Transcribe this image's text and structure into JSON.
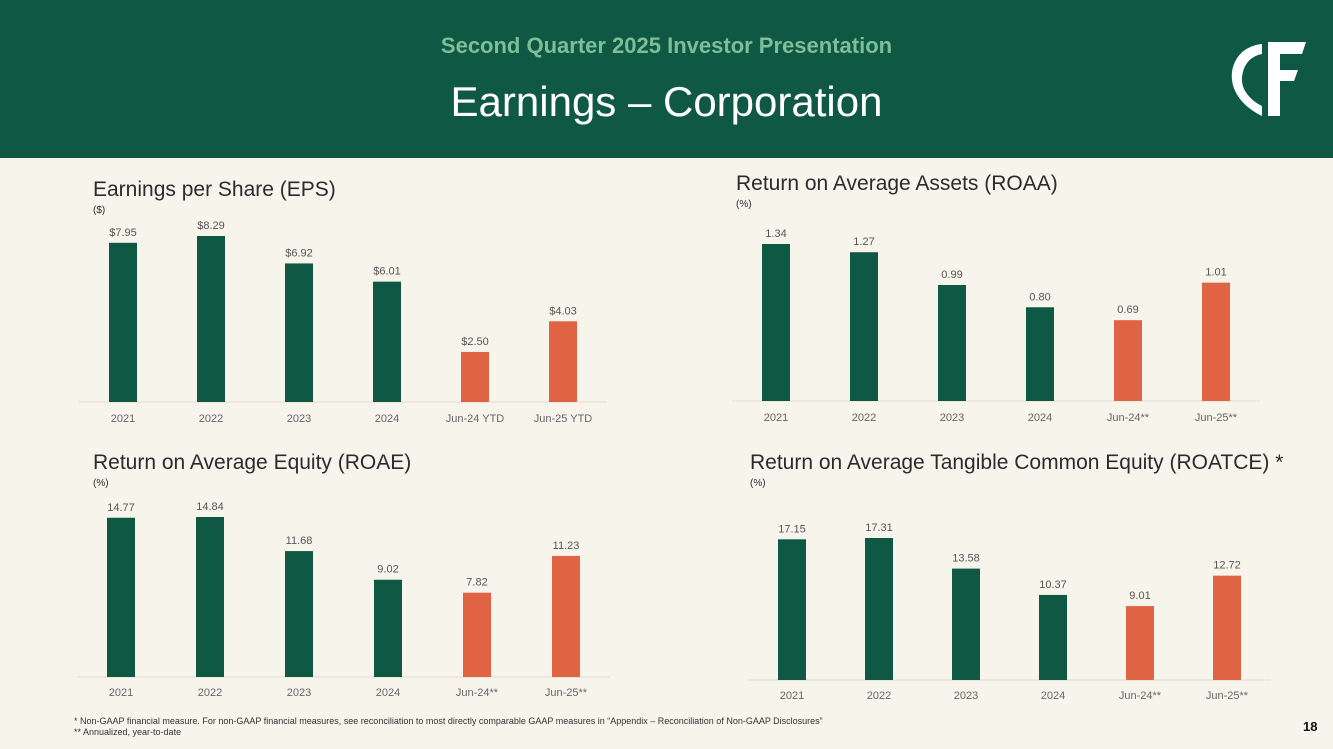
{
  "header": {
    "subtitle": "Second Quarter 2025 Investor Presentation",
    "title": "Earnings – Corporation",
    "bg_color": "#0f5944",
    "subtitle_color": "#7dbe99"
  },
  "logo": {
    "name": "cf-logo-icon"
  },
  "colors": {
    "historic": "#0f5944",
    "ytd": "#e06444"
  },
  "chart_data": [
    {
      "id": "eps",
      "type": "bar",
      "title": "Earnings per Share (EPS)",
      "unit": "($)",
      "categories": [
        "2021",
        "2022",
        "2023",
        "2024",
        "Jun-24 YTD",
        "Jun-25 YTD"
      ],
      "values": [
        7.95,
        8.29,
        6.92,
        6.01,
        2.5,
        4.03
      ],
      "labels": [
        "$7.95",
        "$8.29",
        "$6.92",
        "$6.01",
        "$2.50",
        "$4.03"
      ],
      "highlight": [
        false,
        false,
        false,
        false,
        true,
        true
      ],
      "ylim": [
        0,
        8.29
      ]
    },
    {
      "id": "roaa",
      "type": "bar",
      "title": "Return on Average Assets (ROAA)",
      "unit": "(%)",
      "categories": [
        "2021",
        "2022",
        "2023",
        "2024",
        "Jun-24**",
        "Jun-25**"
      ],
      "values": [
        1.34,
        1.27,
        0.99,
        0.8,
        0.69,
        1.01
      ],
      "labels": [
        "1.34",
        "1.27",
        "0.99",
        "0.80",
        "0.69",
        "1.01"
      ],
      "highlight": [
        false,
        false,
        false,
        false,
        true,
        true
      ],
      "ylim": [
        0,
        1.34
      ]
    },
    {
      "id": "roae",
      "type": "bar",
      "title": "Return on Average Equity (ROAE)",
      "unit": "(%)",
      "categories": [
        "2021",
        "2022",
        "2023",
        "2024",
        "Jun-24**",
        "Jun-25**"
      ],
      "values": [
        14.77,
        14.84,
        11.68,
        9.02,
        7.82,
        11.23
      ],
      "labels": [
        "14.77",
        "14.84",
        "11.68",
        "9.02",
        "7.82",
        "11.23"
      ],
      "highlight": [
        false,
        false,
        false,
        false,
        true,
        true
      ],
      "ylim": [
        0,
        14.84
      ]
    },
    {
      "id": "roatce",
      "type": "bar",
      "title": "Return on Average Tangible Common Equity (ROATCE) *",
      "unit": "(%)",
      "categories": [
        "2021",
        "2022",
        "2023",
        "2024",
        "Jun-24**",
        "Jun-25**"
      ],
      "values": [
        17.15,
        17.31,
        13.58,
        10.37,
        9.01,
        12.72
      ],
      "labels": [
        "17.15",
        "17.31",
        "13.58",
        "10.37",
        "9.01",
        "12.72"
      ],
      "highlight": [
        false,
        false,
        false,
        false,
        true,
        true
      ],
      "ylim": [
        0,
        17.31
      ]
    }
  ],
  "footnotes": {
    "line1": "*  Non-GAAP financial measure.  For non-GAAP financial measures, see reconciliation to most directly comparable GAAP measures in “Appendix – Reconciliation of Non-GAAP Disclosures”",
    "line2": "** Annualized, year-to-date"
  },
  "page_number": "18"
}
